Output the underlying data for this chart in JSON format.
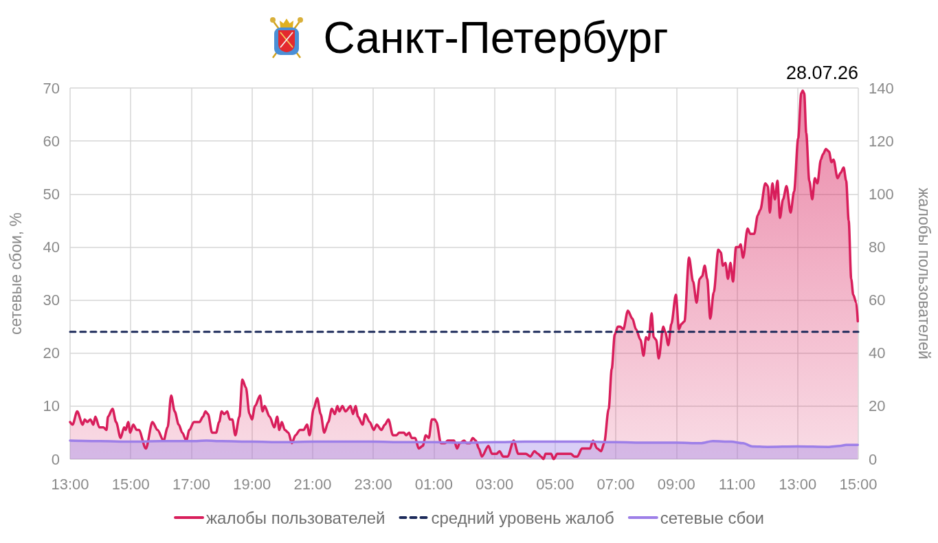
{
  "chart_data": {
    "type": "area",
    "title": "Санкт-Петербург",
    "ylabel": "сетевые сбои, %",
    "y2label": "жалобы пользователей",
    "annotations": [
      "28.07.26"
    ],
    "xlim": [
      "--07-27T13:00",
      "--07-28T15:00"
    ],
    "xticks": [
      {
        "value": "--07-27T13:00",
        "label": "13:00"
      },
      {
        "value": "--07-27T15:00",
        "label": "15:00"
      },
      {
        "value": "--07-27T17:00",
        "label": "17:00"
      },
      {
        "value": "--07-27T19:00",
        "label": "19:00"
      },
      {
        "value": "--07-27T21:00",
        "label": "21:00"
      },
      {
        "value": "--07-27T23:00",
        "label": "23:00"
      },
      {
        "value": "--07-28T01:00",
        "label": "01:00"
      },
      {
        "value": "--07-28T03:00",
        "label": "03:00"
      },
      {
        "value": "--07-28T05:00",
        "label": "05:00"
      },
      {
        "value": "--07-28T07:00",
        "label": "07:00"
      },
      {
        "value": "--07-28T09:00",
        "label": "09:00"
      },
      {
        "value": "--07-28T11:00",
        "label": "11:00"
      },
      {
        "value": "--07-28T13:00",
        "label": "13:00"
      },
      {
        "value": "--07-28T15:00",
        "label": "15:00"
      }
    ],
    "ylim": [
      0,
      70
    ],
    "yticks": [
      0,
      10,
      20,
      30,
      40,
      50,
      60,
      70
    ],
    "y2lim": [
      0,
      140
    ],
    "y2ticks": [
      0,
      20,
      40,
      60,
      80,
      100,
      120,
      140
    ],
    "grid": true,
    "legend": "bottom",
    "marker": "none",
    "series": [
      {
        "name": "жалобы пользователей",
        "color": "#d81e5b",
        "axis": "y2",
        "x": [
          "--07-27T13:00",
          "--07-27T13:05",
          "--07-27T13:14",
          "--07-27T13:25",
          "--07-27T13:29",
          "--07-27T13:34",
          "--07-27T13:40",
          "--07-27T13:46",
          "--07-27T13:50",
          "--07-27T13:58",
          "--07-27T14:06",
          "--07-27T14:12",
          "--07-27T14:15",
          "--07-27T14:24",
          "--07-27T14:31",
          "--07-27T14:40",
          "--07-27T14:47",
          "--07-27T14:50",
          "--07-27T14:55",
          "--07-27T14:59",
          "--07-27T15:05",
          "--07-27T15:12",
          "--07-27T15:16",
          "--07-27T15:30",
          "--07-27T15:43",
          "--07-27T15:53",
          "--07-27T16:05",
          "--07-27T16:13",
          "--07-27T16:20",
          "--07-27T16:27",
          "--07-27T16:35",
          "--07-27T16:42",
          "--07-27T16:50",
          "--07-27T16:56",
          "--07-27T17:05",
          "--07-27T17:16",
          "--07-27T17:23",
          "--07-27T17:28",
          "--07-27T17:33",
          "--07-27T17:41",
          "--07-27T17:49",
          "--07-27T17:55",
          "--07-27T18:00",
          "--07-27T18:05",
          "--07-27T18:11",
          "--07-27T18:16",
          "--07-27T18:21",
          "--07-27T18:27",
          "--07-27T18:35",
          "--07-27T18:41",
          "--07-27T18:48",
          "--07-27T18:55",
          "--07-27T19:00",
          "--07-27T19:06",
          "--07-27T19:16",
          "--07-27T19:21",
          "--07-27T19:25",
          "--07-27T19:35",
          "--07-27T19:44",
          "--07-27T19:50",
          "--07-27T19:54",
          "--07-27T19:59",
          "--07-27T20:05",
          "--07-27T20:12",
          "--07-27T20:19",
          "--07-27T20:26",
          "--07-27T20:35",
          "--07-27T20:42",
          "--07-27T20:49",
          "--07-27T20:54",
          "--07-27T21:02",
          "--07-27T21:09",
          "--07-27T21:16",
          "--07-27T21:23",
          "--07-27T21:31",
          "--07-27T21:38",
          "--07-27T21:44",
          "--07-27T21:49",
          "--07-27T21:53",
          "--07-27T21:59",
          "--07-27T22:05",
          "--07-27T22:15",
          "--07-27T22:20",
          "--07-27T22:25",
          "--07-27T22:30",
          "--07-27T22:39",
          "--07-27T22:44",
          "--07-27T22:53",
          "--07-27T23:01",
          "--07-27T23:07",
          "--07-27T23:16",
          "--07-27T23:23",
          "--07-27T23:30",
          "--07-27T23:39",
          "--07-27T23:46",
          "--07-27T23:51",
          "--07-28T00:01",
          "--07-28T00:05",
          "--07-28T00:11",
          "--07-28T00:16",
          "--07-28T00:23",
          "--07-28T00:30",
          "--07-28T00:38",
          "--07-28T00:44",
          "--07-28T00:50",
          "--07-28T00:56",
          "--07-28T01:02",
          "--07-28T01:05",
          "--07-28T01:14",
          "--07-28T01:22",
          "--07-28T01:27",
          "--07-28T01:40",
          "--07-28T01:46",
          "--07-28T01:51",
          "--07-28T02:00",
          "--07-28T02:05",
          "--07-28T02:11",
          "--07-28T02:17",
          "--07-28T02:23",
          "--07-28T02:29",
          "--07-28T02:35",
          "--07-28T02:48",
          "--07-28T02:55",
          "--07-28T03:04",
          "--07-28T03:10",
          "--07-28T03:17",
          "--07-28T03:26",
          "--07-28T03:38",
          "--07-28T03:47",
          "--07-28T04:02",
          "--07-28T04:11",
          "--07-28T04:19",
          "--07-28T04:26",
          "--07-28T04:32",
          "--07-28T04:37",
          "--07-28T04:41",
          "--07-28T04:52",
          "--07-28T04:57",
          "--07-28T05:04",
          "--07-28T05:31",
          "--07-28T05:38",
          "--07-28T05:44",
          "--07-28T05:53",
          "--07-28T06:09",
          "--07-28T06:15",
          "--07-28T06:23",
          "--07-28T06:31",
          "--07-28T06:37",
          "--07-28T06:46",
          "--07-28T06:52",
          "--07-28T06:58",
          "--07-28T07:04",
          "--07-28T07:09",
          "--07-28T07:15",
          "--07-28T07:24",
          "--07-28T07:33",
          "--07-28T07:40",
          "--07-28T07:49",
          "--07-28T07:55",
          "--07-28T08:00",
          "--07-28T08:05",
          "--07-28T08:11",
          "--07-28T08:15",
          "--07-28T08:20",
          "--07-28T08:25",
          "--07-28T08:34",
          "--07-28T08:38",
          "--07-28T08:44",
          "--07-28T08:50",
          "--07-28T08:59",
          "--07-28T09:05",
          "--07-28T09:10",
          "--07-28T09:16",
          "--07-28T09:25",
          "--07-28T09:33",
          "--07-28T09:40",
          "--07-28T09:46",
          "--07-28T09:51",
          "--07-28T09:56",
          "--07-28T10:01",
          "--07-28T10:07",
          "--07-28T10:14",
          "--07-28T10:23",
          "--07-28T10:28",
          "--07-28T10:32",
          "--07-28T10:37",
          "--07-28T10:42",
          "--07-28T10:47",
          "--07-28T10:52",
          "--07-28T10:58",
          "--07-28T11:04",
          "--07-28T11:07",
          "--07-28T11:12",
          "--07-28T11:21",
          "--07-28T11:26",
          "--07-28T11:34",
          "--07-28T11:41",
          "--07-28T11:46",
          "--07-28T11:56",
          "--07-28T12:01",
          "--07-28T12:05",
          "--07-28T12:10",
          "--07-28T12:15",
          "--07-28T12:20",
          "--07-28T12:25",
          "--07-28T12:31",
          "--07-28T12:38",
          "--07-28T12:46",
          "--07-28T12:53",
          "--07-28T13:01",
          "--07-28T13:07",
          "--07-28T13:10",
          "--07-28T13:13",
          "--07-28T13:17",
          "--07-28T13:23",
          "--07-28T13:29",
          "--07-28T13:34",
          "--07-28T13:39",
          "--07-28T13:46",
          "--07-28T13:50",
          "--07-28T13:56",
          "--07-28T14:02",
          "--07-28T14:07",
          "--07-28T14:11",
          "--07-28T14:19",
          "--07-28T14:25",
          "--07-28T14:31",
          "--07-28T14:36",
          "--07-28T14:41",
          "--07-28T14:46",
          "--07-28T14:50",
          "--07-28T14:56",
          "--07-28T14:59"
        ],
        "values": [
          14,
          13,
          18,
          13,
          15,
          14,
          15,
          13,
          16,
          12,
          12,
          11,
          16,
          19,
          14,
          8,
          12,
          11,
          14,
          10,
          13,
          11,
          11,
          4,
          14,
          11,
          7,
          12,
          24,
          18,
          13,
          10,
          7,
          11,
          14,
          14,
          16,
          18,
          17,
          10,
          10,
          14,
          18,
          17,
          18,
          15,
          15,
          9,
          16,
          30,
          27,
          17,
          15,
          20,
          24,
          18,
          20,
          16,
          12,
          16,
          11,
          14,
          11,
          10,
          6,
          9,
          11,
          11,
          13,
          9,
          19,
          23,
          17,
          10,
          14,
          19,
          17,
          20,
          18,
          20,
          18,
          20,
          17,
          20,
          16,
          13,
          17,
          14,
          11,
          13,
          11,
          13,
          15,
          9,
          9,
          10,
          10,
          9,
          10,
          8,
          8,
          4,
          5,
          9,
          8,
          15,
          15,
          14,
          6,
          6,
          7,
          7,
          4,
          6,
          7,
          6,
          6,
          8,
          7,
          4,
          1,
          5,
          2,
          2,
          3,
          1,
          1,
          7,
          2,
          2,
          1,
          3,
          2,
          1,
          0,
          2,
          2,
          0,
          2,
          2,
          1,
          1,
          4,
          4,
          7,
          4,
          3,
          6,
          19,
          34,
          47,
          50,
          50,
          49,
          56,
          53,
          49,
          45,
          39,
          46,
          45,
          55,
          46,
          45,
          38,
          50,
          48,
          43,
          51,
          62,
          49,
          51,
          52,
          76,
          67,
          59,
          68,
          69,
          73,
          68,
          53,
          63,
          79,
          78,
          73,
          74,
          68,
          74,
          67,
          80,
          80,
          81,
          76,
          87,
          85,
          85,
          92,
          94,
          104,
          103,
          93,
          104,
          98,
          105,
          91,
          98,
          103,
          93,
          101,
          121,
          138,
          139,
          138,
          123,
          105,
          98,
          106,
          104,
          113,
          115,
          117,
          116,
          112,
          113,
          106,
          108,
          110,
          105,
          90,
          68,
          62,
          59,
          52
        ]
      },
      {
        "name": "средний уровень жалоб",
        "type": "line",
        "line_style": "dashed",
        "color": "#1c2a5a",
        "axis": "y2",
        "x": [
          "--07-27T13:00",
          "--07-28T15:00"
        ],
        "values": [
          48,
          48
        ]
      },
      {
        "name": "сетевые сбои",
        "color": "#9d7fe8",
        "x": [
          "--07-27T13:00",
          "--07-27T14:00",
          "--07-27T15:00",
          "--07-27T16:00",
          "--07-27T17:00",
          "--07-27T17:30",
          "--07-27T18:00",
          "--07-27T19:00",
          "--07-27T20:00",
          "--07-27T21:00",
          "--07-27T22:00",
          "--07-27T23:00",
          "--07-28T00:00",
          "--07-28T01:00",
          "--07-28T02:00",
          "--07-28T03:00",
          "--07-28T04:00",
          "--07-28T05:00",
          "--07-28T06:00",
          "--07-28T07:00",
          "--07-28T08:00",
          "--07-28T09:00",
          "--07-28T09:48",
          "--07-28T10:12",
          "--07-28T10:48",
          "--07-28T11:12",
          "--07-28T11:30",
          "--07-28T12:00",
          "--07-28T13:00",
          "--07-28T14:00",
          "--07-28T14:24",
          "--07-28T14:36",
          "--07-28T14:59"
        ],
        "values": [
          3.5,
          3.4,
          3.3,
          3.4,
          3.4,
          3.5,
          3.4,
          3.3,
          3.2,
          3.3,
          3.3,
          3.3,
          3.2,
          3.2,
          3.1,
          3.2,
          3.3,
          3.3,
          3.3,
          3.2,
          3.1,
          3.1,
          3.0,
          3.4,
          3.3,
          3.0,
          2.4,
          2.3,
          2.4,
          2.3,
          2.5,
          2.7,
          2.7
        ]
      }
    ]
  }
}
